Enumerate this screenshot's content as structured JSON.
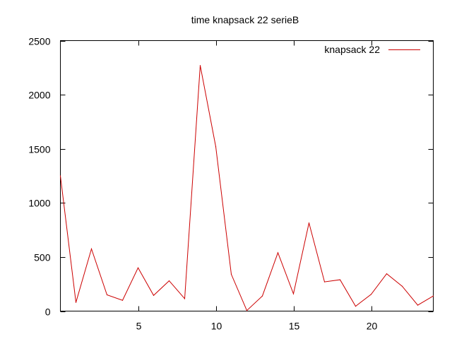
{
  "chart_data": {
    "type": "line",
    "title": "time knapsack 22 serieB",
    "xlabel": "",
    "ylabel": "",
    "xlim": [
      0,
      24
    ],
    "ylim": [
      0,
      2500
    ],
    "xticks": [
      5,
      10,
      15,
      20
    ],
    "yticks": [
      0,
      500,
      1000,
      1500,
      2000,
      2500
    ],
    "grid": false,
    "legend_position": "top-right",
    "series": [
      {
        "name": "knapsack 22",
        "color": "#cc0000",
        "x": [
          0,
          1,
          2,
          3,
          4,
          5,
          6,
          7,
          8,
          9,
          10,
          11,
          12,
          13,
          14,
          15,
          16,
          17,
          18,
          19,
          20,
          21,
          22,
          23,
          24
        ],
        "y": [
          1250,
          80,
          575,
          150,
          100,
          400,
          145,
          280,
          115,
          2270,
          1520,
          340,
          5,
          140,
          540,
          160,
          815,
          270,
          290,
          45,
          155,
          345,
          230,
          55,
          140
        ]
      }
    ]
  }
}
